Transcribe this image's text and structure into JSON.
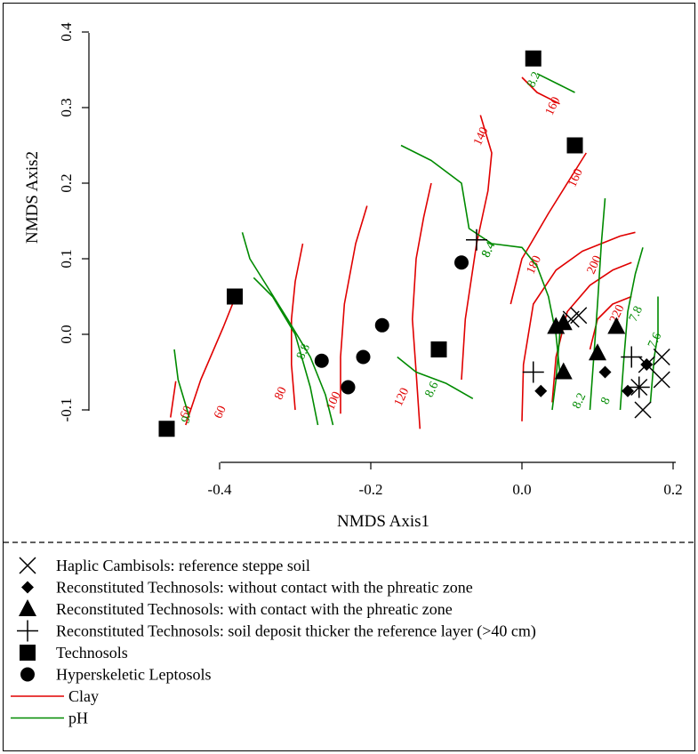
{
  "chart_data": {
    "type": "scatter",
    "xlabel": "NMDS Axis1",
    "ylabel": "NMDS Axis2",
    "xlim": [
      -0.5,
      0.2
    ],
    "ylim": [
      -0.13,
      0.42
    ],
    "x_ticks": [
      "-0.4",
      "-0.2",
      "0.0",
      "0.2"
    ],
    "y_ticks": [
      "-0.1",
      "0.0",
      "0.1",
      "0.2",
      "0.3",
      "0.4"
    ],
    "colors": {
      "clay": "#e00000",
      "ph": "#008a00",
      "points": "#000000"
    },
    "legend": [
      {
        "symbol": "cross",
        "label": "Haplic Cambisols: reference steppe soil"
      },
      {
        "symbol": "diamond",
        "label": "Reconstituted Technosols: without contact with the phreatic zone"
      },
      {
        "symbol": "triangle",
        "label": "Reconstituted Technosols: with contact with the phreatic zone"
      },
      {
        "symbol": "plus",
        "label": "Reconstituted Technosols: soil deposit thicker the reference layer (>40 cm)"
      },
      {
        "symbol": "square",
        "label": "Technosols"
      },
      {
        "symbol": "circle",
        "label": "Hyperskeletic Leptosols"
      },
      {
        "symbol": "line-red",
        "label": "Clay"
      },
      {
        "symbol": "line-green",
        "label": "pH"
      }
    ],
    "series": [
      {
        "name": "Haplic Cambisols: reference steppe soil",
        "symbol": "cross",
        "points": [
          [
            0.065,
            0.02
          ],
          [
            0.075,
            0.025
          ],
          [
            0.165,
            -0.04
          ],
          [
            0.185,
            -0.03
          ],
          [
            0.185,
            -0.06
          ],
          [
            0.16,
            -0.1
          ],
          [
            0.155,
            -0.07
          ]
        ]
      },
      {
        "name": "Reconstituted Technosols: without contact with the phreatic zone",
        "symbol": "diamond",
        "points": [
          [
            0.025,
            -0.075
          ],
          [
            0.11,
            -0.05
          ],
          [
            0.165,
            -0.04
          ],
          [
            0.14,
            -0.075
          ]
        ]
      },
      {
        "name": "Reconstituted Technosols: with contact with the phreatic zone",
        "symbol": "triangle",
        "points": [
          [
            0.045,
            0.01
          ],
          [
            0.055,
            0.015
          ],
          [
            0.055,
            -0.05
          ],
          [
            0.1,
            -0.025
          ],
          [
            0.125,
            0.01
          ]
        ]
      },
      {
        "name": "Reconstituted Technosols: soil deposit thicker the reference layer (>40 cm)",
        "symbol": "plus",
        "points": [
          [
            -0.06,
            0.125
          ],
          [
            0.015,
            -0.05
          ],
          [
            0.145,
            -0.03
          ],
          [
            0.155,
            -0.07
          ]
        ]
      },
      {
        "name": "Technosols",
        "symbol": "square",
        "points": [
          [
            -0.47,
            -0.125
          ],
          [
            -0.38,
            0.05
          ],
          [
            -0.11,
            -0.02
          ],
          [
            0.015,
            0.365
          ],
          [
            0.07,
            0.25
          ]
        ]
      },
      {
        "name": "Hyperskeletic Leptosols",
        "symbol": "circle",
        "points": [
          [
            -0.265,
            -0.035
          ],
          [
            -0.23,
            -0.07
          ],
          [
            -0.21,
            -0.03
          ],
          [
            -0.185,
            0.012
          ],
          [
            -0.08,
            0.095
          ]
        ]
      }
    ],
    "contours": {
      "clay": [
        {
          "label": "60",
          "path": [
            [
              -0.465,
              -0.11
            ],
            [
              -0.458,
              -0.062
            ]
          ],
          "label_at": [
            -0.44,
            -0.105
          ]
        },
        {
          "label": "60",
          "path": [
            [
              -0.445,
              -0.12
            ],
            [
              -0.425,
              -0.06
            ],
            [
              -0.395,
              0.01
            ],
            [
              -0.375,
              0.06
            ]
          ],
          "label_at": [
            -0.395,
            -0.105
          ]
        },
        {
          "label": "80",
          "path": [
            [
              -0.3,
              -0.1
            ],
            [
              -0.305,
              -0.04
            ],
            [
              -0.305,
              0.02
            ],
            [
              -0.3,
              0.07
            ],
            [
              -0.29,
              0.12
            ]
          ],
          "label_at": [
            -0.315,
            -0.08
          ]
        },
        {
          "label": "100",
          "path": [
            [
              -0.24,
              -0.105
            ],
            [
              -0.24,
              -0.03
            ],
            [
              -0.235,
              0.04
            ],
            [
              -0.22,
              0.12
            ],
            [
              -0.205,
              0.17
            ]
          ],
          "label_at": [
            -0.245,
            -0.09
          ]
        },
        {
          "label": "120",
          "path": [
            [
              -0.135,
              -0.125
            ],
            [
              -0.14,
              -0.05
            ],
            [
              -0.145,
              0.02
            ],
            [
              -0.14,
              0.1
            ],
            [
              -0.13,
              0.155
            ],
            [
              -0.12,
              0.2
            ]
          ],
          "label_at": [
            -0.155,
            -0.085
          ]
        },
        {
          "label": "140",
          "path": [
            [
              -0.08,
              -0.06
            ],
            [
              -0.075,
              0.02
            ],
            [
              -0.06,
              0.12
            ],
            [
              -0.045,
              0.19
            ],
            [
              -0.04,
              0.24
            ],
            [
              -0.055,
              0.29
            ]
          ],
          "label_at": [
            -0.05,
            0.26
          ]
        },
        {
          "label": "160",
          "path": [
            [
              -0.015,
              0.04
            ],
            [
              0.0,
              0.1
            ],
            [
              0.035,
              0.16
            ],
            [
              0.06,
              0.2
            ],
            [
              0.085,
              0.24
            ]
          ],
          "label_at": [
            0.075,
            0.205
          ]
        },
        {
          "label": "160",
          "path": [
            [
              0.0,
              0.34
            ],
            [
              0.02,
              0.32
            ],
            [
              0.05,
              0.305
            ]
          ],
          "label_at": [
            0.045,
            0.3
          ]
        },
        {
          "label": "180",
          "path": [
            [
              0.0,
              -0.115
            ],
            [
              0.002,
              -0.04
            ],
            [
              0.015,
              0.04
            ],
            [
              0.045,
              0.085
            ],
            [
              0.08,
              0.11
            ],
            [
              0.13,
              0.13
            ],
            [
              0.15,
              0.135
            ]
          ],
          "label_at": [
            0.02,
            0.09
          ]
        },
        {
          "label": "200",
          "path": [
            [
              0.04,
              -0.09
            ],
            [
              0.045,
              -0.03
            ],
            [
              0.06,
              0.03
            ],
            [
              0.09,
              0.065
            ],
            [
              0.12,
              0.085
            ],
            [
              0.145,
              0.095
            ]
          ],
          "label_at": [
            0.1,
            0.09
          ]
        },
        {
          "label": "220",
          "path": [
            [
              0.09,
              -0.02
            ],
            [
              0.1,
              0.02
            ],
            [
              0.12,
              0.04
            ],
            [
              0.145,
              0.05
            ]
          ],
          "label_at": [
            0.13,
            0.025
          ]
        }
      ],
      "ph": [
        {
          "label": "9",
          "path": [
            [
              -0.44,
              -0.11
            ],
            [
              -0.455,
              -0.06
            ],
            [
              -0.46,
              -0.02
            ]
          ],
          "label_at": [
            -0.44,
            -0.115
          ]
        },
        {
          "label": "8.8",
          "path": [
            [
              -0.27,
              -0.12
            ],
            [
              -0.28,
              -0.07
            ],
            [
              -0.3,
              0.0
            ],
            [
              -0.33,
              0.05
            ],
            [
              -0.355,
              0.075
            ]
          ],
          "label_at": [
            -0.285,
            -0.025
          ]
        },
        {
          "label": "8.6",
          "path": [
            [
              -0.25,
              -0.12
            ],
            [
              -0.26,
              -0.08
            ],
            [
              -0.28,
              -0.03
            ],
            [
              -0.31,
              0.02
            ],
            [
              -0.36,
              0.1
            ],
            [
              -0.37,
              0.135
            ]
          ],
          "label_at": [
            -0.115,
            -0.075
          ]
        },
        {
          "label": "8.4",
          "path": [
            [
              -0.165,
              -0.03
            ],
            [
              -0.14,
              -0.05
            ],
            [
              -0.1,
              -0.065
            ],
            [
              -0.065,
              -0.085
            ]
          ],
          "label_at": [
            -0.04,
            0.11
          ]
        },
        {
          "label": "8.4",
          "path": [
            [
              -0.16,
              0.25
            ],
            [
              -0.12,
              0.23
            ],
            [
              -0.08,
              0.2
            ],
            [
              -0.07,
              0.14
            ],
            [
              -0.04,
              0.12
            ],
            [
              0.0,
              0.115
            ],
            [
              0.02,
              0.09
            ],
            [
              0.035,
              0.05
            ],
            [
              0.045,
              0.0
            ],
            [
              0.05,
              -0.05
            ]
          ],
          "label_at": [
            -0.04,
            0.11
          ]
        },
        {
          "label": "8.2",
          "path": [
            [
              0.02,
              0.345
            ],
            [
              0.05,
              0.33
            ],
            [
              0.07,
              0.32
            ]
          ],
          "label_at": [
            0.02,
            0.335
          ]
        },
        {
          "label": "8.2",
          "path": [
            [
              0.04,
              -0.1
            ],
            [
              0.045,
              -0.06
            ],
            [
              0.05,
              0.0
            ],
            [
              0.055,
              0.02
            ]
          ],
          "label_at": [
            0.08,
            -0.09
          ]
        },
        {
          "label": "8",
          "path": [
            [
              0.09,
              -0.1
            ],
            [
              0.095,
              -0.03
            ],
            [
              0.1,
              0.04
            ],
            [
              0.105,
              0.12
            ],
            [
              0.11,
              0.18
            ]
          ],
          "label_at": [
            0.115,
            -0.09
          ]
        },
        {
          "label": "7.8",
          "path": [
            [
              0.13,
              -0.1
            ],
            [
              0.135,
              -0.03
            ],
            [
              0.14,
              0.03
            ],
            [
              0.15,
              0.08
            ],
            [
              0.16,
              0.115
            ]
          ],
          "label_at": [
            0.155,
            0.025
          ]
        },
        {
          "label": "7.6",
          "path": [
            [
              0.17,
              -0.09
            ],
            [
              0.175,
              -0.03
            ],
            [
              0.18,
              0.0
            ],
            [
              0.18,
              0.05
            ]
          ],
          "label_at": [
            0.18,
            -0.01
          ]
        }
      ]
    }
  }
}
